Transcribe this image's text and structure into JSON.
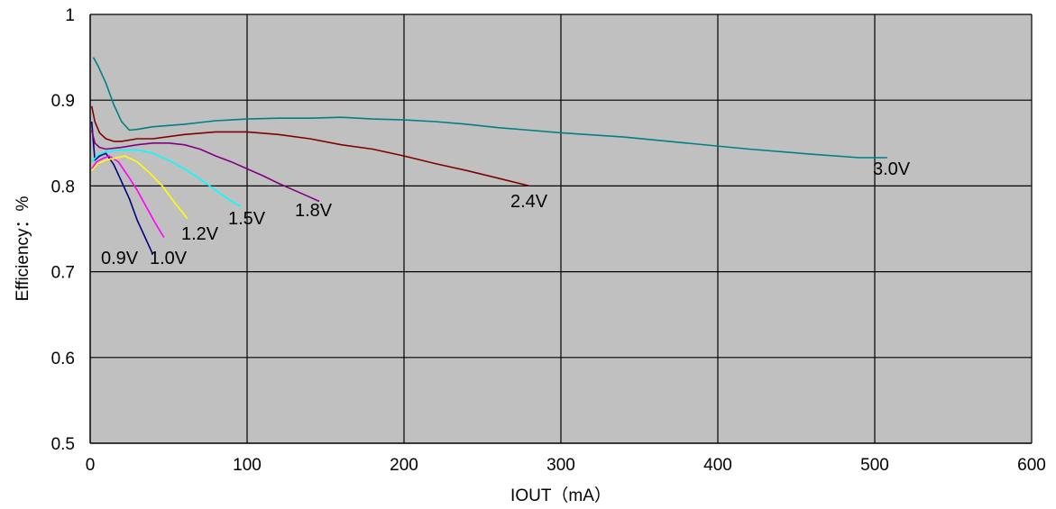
{
  "chart_data": {
    "type": "line",
    "xlabel": "IOUT（mA）",
    "ylabel": "Efficiency：%",
    "xlim": [
      0,
      600
    ],
    "ylim": [
      0.5,
      1.0
    ],
    "x_ticks": [
      "0",
      "100",
      "200",
      "300",
      "400",
      "500",
      "600"
    ],
    "y_ticks": [
      "0.5",
      "0.6",
      "0.7",
      "0.8",
      "0.9",
      "1"
    ],
    "grid": true,
    "legend": "none",
    "plot_background": "#C0C0C0",
    "series": [
      {
        "name": "0.9V",
        "color": "#000080",
        "x": [
          1,
          3,
          6,
          10,
          15,
          20,
          25,
          30,
          35,
          40
        ],
        "y": [
          0.875,
          0.83,
          0.835,
          0.838,
          0.825,
          0.805,
          0.785,
          0.76,
          0.74,
          0.72
        ]
      },
      {
        "name": "1.0V",
        "color": "#FF00FF",
        "x": [
          1,
          4,
          8,
          12,
          18,
          24,
          30,
          36,
          42,
          47
        ],
        "y": [
          0.82,
          0.828,
          0.832,
          0.835,
          0.828,
          0.812,
          0.795,
          0.775,
          0.755,
          0.74
        ]
      },
      {
        "name": "1.2V",
        "color": "#FFFF00",
        "x": [
          1,
          5,
          10,
          15,
          22,
          30,
          38,
          46,
          54,
          62
        ],
        "y": [
          0.818,
          0.826,
          0.83,
          0.832,
          0.835,
          0.828,
          0.815,
          0.8,
          0.78,
          0.762
        ]
      },
      {
        "name": "1.5V",
        "color": "#00FFFF",
        "x": [
          1,
          5,
          10,
          20,
          30,
          40,
          50,
          60,
          70,
          80,
          90,
          96
        ],
        "y": [
          0.828,
          0.836,
          0.84,
          0.842,
          0.842,
          0.838,
          0.83,
          0.82,
          0.808,
          0.795,
          0.782,
          0.776
        ]
      },
      {
        "name": "1.8V",
        "color": "#800080",
        "x": [
          1,
          3,
          6,
          10,
          20,
          30,
          40,
          50,
          60,
          70,
          80,
          90,
          100,
          110,
          120,
          130,
          140,
          146
        ],
        "y": [
          0.865,
          0.85,
          0.845,
          0.843,
          0.845,
          0.848,
          0.85,
          0.85,
          0.848,
          0.843,
          0.835,
          0.828,
          0.82,
          0.812,
          0.803,
          0.795,
          0.787,
          0.782
        ]
      },
      {
        "name": "2.4V",
        "color": "#800000",
        "x": [
          1,
          3,
          6,
          10,
          15,
          20,
          30,
          40,
          60,
          80,
          100,
          120,
          140,
          160,
          180,
          200,
          220,
          240,
          260,
          280
        ],
        "y": [
          0.893,
          0.875,
          0.862,
          0.855,
          0.852,
          0.852,
          0.855,
          0.855,
          0.86,
          0.863,
          0.863,
          0.86,
          0.855,
          0.848,
          0.843,
          0.835,
          0.826,
          0.818,
          0.809,
          0.8
        ]
      },
      {
        "name": "3.0V",
        "color": "#008080",
        "x": [
          2,
          5,
          10,
          15,
          20,
          25,
          30,
          40,
          60,
          80,
          100,
          120,
          140,
          160,
          180,
          200,
          220,
          240,
          260,
          280,
          300,
          340,
          380,
          420,
          460,
          490,
          508
        ],
        "y": [
          0.95,
          0.94,
          0.92,
          0.895,
          0.875,
          0.865,
          0.866,
          0.869,
          0.872,
          0.876,
          0.878,
          0.879,
          0.879,
          0.88,
          0.878,
          0.877,
          0.875,
          0.872,
          0.868,
          0.865,
          0.862,
          0.857,
          0.85,
          0.843,
          0.837,
          0.833,
          0.833
        ]
      }
    ],
    "series_labels": [
      "0.9V",
      "1.0V",
      "1.2V",
      "1.5V",
      "1.8V",
      "2.4V",
      "3.0V"
    ]
  }
}
